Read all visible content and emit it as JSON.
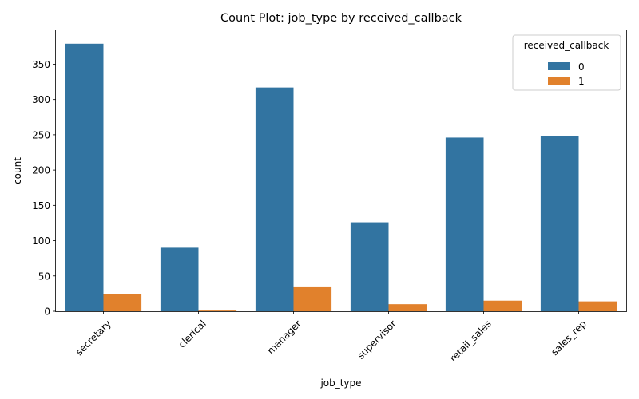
{
  "chart_data": {
    "type": "bar",
    "title": "Count Plot: job_type by received_callback",
    "xlabel": "job_type",
    "ylabel": "count",
    "categories": [
      "secretary",
      "clerical",
      "manager",
      "supervisor",
      "retail_sales",
      "sales_rep"
    ],
    "series": [
      {
        "name": "0",
        "values": [
          379,
          90,
          317,
          126,
          246,
          248
        ],
        "color": "#3274a1"
      },
      {
        "name": "1",
        "values": [
          24,
          1,
          34,
          10,
          15,
          14
        ],
        "color": "#e1812c"
      }
    ],
    "ylim": [
      0,
      398
    ],
    "yticks": [
      0,
      50,
      100,
      150,
      200,
      250,
      300,
      350
    ],
    "grid": false,
    "legend": {
      "title": "received_callback",
      "placement": "top-right"
    }
  }
}
